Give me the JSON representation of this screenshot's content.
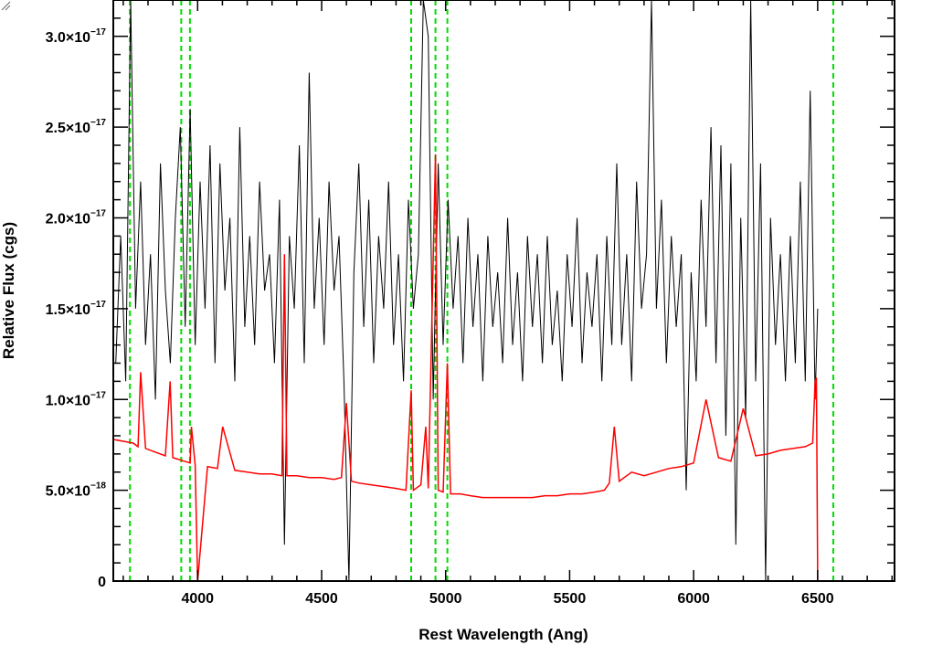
{
  "chart_data": {
    "type": "line",
    "xlabel": "Rest Wavelength (Ang)",
    "ylabel": "Relative Flux (cgs)",
    "xlim": [
      3660,
      6810
    ],
    "ylim": [
      0,
      3.2e-17
    ],
    "x_ticks": [
      {
        "value": 4000,
        "label": "4000"
      },
      {
        "value": 4500,
        "label": "4500"
      },
      {
        "value": 5000,
        "label": "5000"
      },
      {
        "value": 5500,
        "label": "5500"
      },
      {
        "value": 6000,
        "label": "6000"
      },
      {
        "value": 6500,
        "label": "6500"
      }
    ],
    "y_ticks": [
      {
        "value": 0,
        "mantissa": "0",
        "exponent": ""
      },
      {
        "value": 5e-18,
        "mantissa": "5.0×10",
        "exponent": "−18"
      },
      {
        "value": 1e-17,
        "mantissa": "1.0×10",
        "exponent": "−17"
      },
      {
        "value": 1.5e-17,
        "mantissa": "1.5×10",
        "exponent": "−17"
      },
      {
        "value": 2e-17,
        "mantissa": "2.0×10",
        "exponent": "−17"
      },
      {
        "value": 2.5e-17,
        "mantissa": "2.5×10",
        "exponent": "−17"
      },
      {
        "value": 3e-17,
        "mantissa": "3.0×10",
        "exponent": "−17"
      }
    ],
    "vertical_lines": [
      3727,
      3934,
      3969,
      4861,
      4959,
      5007,
      6563
    ],
    "series": [
      {
        "color": "#000000",
        "x": [
          3670,
          3690,
          3710,
          3730,
          3750,
          3770,
          3790,
          3810,
          3830,
          3850,
          3870,
          3890,
          3910,
          3930,
          3950,
          3970,
          3990,
          4010,
          4030,
          4050,
          4070,
          4090,
          4110,
          4130,
          4150,
          4170,
          4190,
          4210,
          4230,
          4250,
          4270,
          4290,
          4310,
          4330,
          4350,
          4370,
          4390,
          4410,
          4430,
          4450,
          4470,
          4490,
          4510,
          4530,
          4550,
          4570,
          4590,
          4610,
          4630,
          4650,
          4670,
          4690,
          4710,
          4730,
          4750,
          4770,
          4790,
          4810,
          4830,
          4850,
          4870,
          4890,
          4910,
          4930,
          4950,
          4970,
          4990,
          5010,
          5030,
          5050,
          5070,
          5090,
          5110,
          5130,
          5150,
          5170,
          5190,
          5210,
          5230,
          5250,
          5270,
          5290,
          5310,
          5330,
          5350,
          5370,
          5390,
          5410,
          5430,
          5450,
          5470,
          5490,
          5510,
          5530,
          5550,
          5570,
          5590,
          5610,
          5630,
          5650,
          5670,
          5690,
          5710,
          5730,
          5750,
          5770,
          5790,
          5810,
          5830,
          5850,
          5870,
          5890,
          5910,
          5930,
          5950,
          5970,
          5990,
          6010,
          6030,
          6050,
          6070,
          6090,
          6110,
          6130,
          6150,
          6170,
          6190,
          6210,
          6230,
          6250,
          6270,
          6290,
          6310,
          6330,
          6350,
          6370,
          6390,
          6410,
          6430,
          6450,
          6470,
          6490,
          6500
        ],
        "y": [
          1.2e-17,
          1.9e-17,
          1.1e-17,
          3.2e-17,
          1.5e-17,
          2.2e-17,
          1.3e-17,
          1.8e-17,
          1e-17,
          2.3e-17,
          1.6e-17,
          1.2e-17,
          2e-17,
          2.5e-17,
          1.4e-17,
          2.6e-17,
          1.3e-17,
          2.2e-17,
          1.5e-17,
          2.4e-17,
          1.2e-17,
          2.3e-17,
          1.6e-17,
          2e-17,
          1.1e-17,
          2.5e-17,
          1.4e-17,
          1.9e-17,
          1.3e-17,
          2.2e-17,
          1.6e-17,
          1.8e-17,
          1.2e-17,
          2.1e-17,
          2e-18,
          1.9e-17,
          1.5e-17,
          2.4e-17,
          1.2e-17,
          2.8e-17,
          1.5e-17,
          2e-17,
          1.3e-17,
          2.2e-17,
          1.6e-17,
          1.9e-17,
          1.1e-17,
          0.0,
          1.7e-17,
          2.3e-17,
          1.4e-17,
          2.1e-17,
          1.2e-17,
          1.9e-17,
          1.5e-17,
          2.2e-17,
          1.3e-17,
          1.8e-17,
          1.1e-17,
          2.1e-17,
          1.5e-17,
          1.8e-17,
          3.2e-17,
          3e-17,
          1e-17,
          2.3e-17,
          1.3e-17,
          2.1e-17,
          1.5e-17,
          1.9e-17,
          1.2e-17,
          2e-17,
          1.4e-17,
          1.8e-17,
          1.1e-17,
          1.9e-17,
          1.4e-17,
          1.7e-17,
          1.2e-17,
          2e-17,
          1.3e-17,
          1.7e-17,
          1.1e-17,
          1.9e-17,
          1.4e-17,
          1.8e-17,
          1.2e-17,
          1.9e-17,
          1.3e-17,
          1.6e-17,
          1.1e-17,
          1.8e-17,
          1.4e-17,
          2e-17,
          1.2e-17,
          1.7e-17,
          1.4e-17,
          1.8e-17,
          1.1e-17,
          1.9e-17,
          1.3e-17,
          2.3e-17,
          1.3e-17,
          1.8e-17,
          1.1e-17,
          2.2e-17,
          1.5e-17,
          1.8e-17,
          3.3e-17,
          1.5e-17,
          2.1e-17,
          1.2e-17,
          1.9e-17,
          1.4e-17,
          1.8e-17,
          5e-18,
          1.7e-17,
          1.1e-17,
          2.1e-17,
          1.4e-17,
          2.5e-17,
          1.2e-17,
          2.4e-17,
          8e-18,
          2.3e-17,
          2e-18,
          2e-17,
          9e-18,
          3.2e-17,
          1.1e-17,
          2.3e-17,
          0.0,
          2e-17,
          1.3e-17,
          1.8e-17,
          1.1e-17,
          1.9e-17,
          1.2e-17,
          2.2e-17,
          1.1e-17,
          2.7e-17,
          1e-17,
          1.5e-17
        ]
      },
      {
        "color": "#ff0000",
        "x": [
          3660,
          3700,
          3740,
          3760,
          3770,
          3790,
          3830,
          3870,
          3889,
          3900,
          3970,
          3975,
          3990,
          4000,
          4040,
          4080,
          4101,
          4150,
          4200,
          4250,
          4300,
          4340,
          4350,
          4360,
          4400,
          4450,
          4500,
          4550,
          4580,
          4600,
          4620,
          4650,
          4700,
          4750,
          4800,
          4840,
          4861,
          4870,
          4900,
          4920,
          4930,
          4959,
          4970,
          4990,
          5007,
          5020,
          5060,
          5100,
          5150,
          5200,
          5250,
          5300,
          5350,
          5400,
          5450,
          5500,
          5550,
          5600,
          5640,
          5660,
          5680,
          5700,
          5750,
          5800,
          5850,
          5900,
          5950,
          6000,
          6050,
          6100,
          6150,
          6200,
          6250,
          6300,
          6350,
          6400,
          6450,
          6480,
          6490,
          6495,
          6500,
          6550,
          6600,
          6700,
          6810
        ],
        "y": [
          7.8e-18,
          7.7e-18,
          7.6e-18,
          7.4e-18,
          1.15e-17,
          7.3e-18,
          7.1e-18,
          6.9e-18,
          1.1e-17,
          6.8e-18,
          6.5e-18,
          8.5e-18,
          6.4e-18,
          0.0,
          6.3e-18,
          6.2e-18,
          8.5e-18,
          6.1e-18,
          6e-18,
          5.9e-18,
          5.9e-18,
          5.8e-18,
          1.8e-17,
          5.8e-18,
          5.8e-18,
          5.7e-18,
          5.7e-18,
          5.6e-18,
          5.7e-18,
          9.8e-18,
          5.5e-18,
          5.4e-18,
          5.3e-18,
          5.2e-18,
          5.1e-18,
          5e-18,
          1.05e-17,
          5e-18,
          5.3e-18,
          8.5e-18,
          5.1e-18,
          2.35e-17,
          5e-18,
          4.9e-18,
          1.2e-17,
          4.8e-18,
          4.8e-18,
          4.7e-18,
          4.6e-18,
          4.6e-18,
          4.6e-18,
          4.6e-18,
          4.6e-18,
          4.7e-18,
          4.7e-18,
          4.8e-18,
          4.8e-18,
          4.9e-18,
          5e-18,
          5.4e-18,
          8.5e-18,
          5.5e-18,
          6e-18,
          5.8e-18,
          6e-18,
          6.2e-18,
          6.3e-18,
          6.5e-18,
          1e-17,
          6.8e-18,
          6.6e-18,
          9.5e-18,
          6.9e-18,
          7e-18,
          7.2e-18,
          7.3e-18,
          7.4e-18,
          7.6e-18,
          1.1e-17,
          1.12e-17,
          0.0,
          0.0,
          0.0,
          0.0,
          0.0
        ]
      }
    ]
  }
}
